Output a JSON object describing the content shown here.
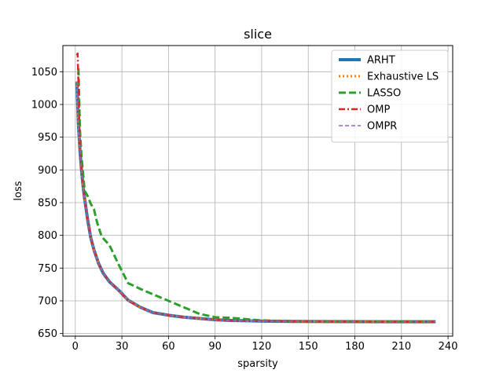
{
  "chart_data": {
    "type": "line",
    "title": "slice",
    "xlabel": "sparsity",
    "ylabel": "loss",
    "xlim": [
      -8,
      243
    ],
    "ylim": [
      646,
      1090
    ],
    "xticks": [
      0,
      30,
      60,
      90,
      120,
      150,
      180,
      210,
      240
    ],
    "yticks": [
      650,
      700,
      750,
      800,
      850,
      900,
      950,
      1000,
      1050
    ],
    "grid": true,
    "legend_position": "top-right",
    "series": [
      {
        "name": "ARHT",
        "color": "#1f77b4",
        "style": "solid",
        "x": [
          1,
          2,
          3,
          4,
          5,
          6,
          8,
          10,
          12,
          15,
          18,
          22,
          28,
          34,
          42,
          50,
          60,
          70,
          80,
          90,
          100,
          110,
          120,
          140,
          160,
          180,
          200,
          220,
          232
        ],
        "y": [
          1035,
          970,
          930,
          900,
          875,
          856,
          823,
          796,
          778,
          757,
          742,
          729,
          716,
          701,
          690,
          682,
          678,
          675,
          673,
          671,
          670,
          669.5,
          669,
          668.5,
          668.3,
          668.2,
          668.1,
          668,
          668
        ]
      },
      {
        "name": "Exhaustive LS",
        "color": "#ff7f0e",
        "style": "dotted",
        "x": [
          1,
          2,
          3,
          4,
          5,
          6,
          8,
          10,
          12,
          15,
          18,
          22,
          28,
          34,
          42,
          50,
          60,
          70,
          80,
          90,
          100,
          110,
          120,
          140,
          160,
          180,
          200,
          220,
          232
        ],
        "y": [
          1035,
          970,
          930,
          900,
          875,
          856,
          823,
          796,
          778,
          757,
          742,
          729,
          716,
          701,
          690,
          682,
          678,
          675,
          673,
          671,
          670,
          669.5,
          669,
          668.5,
          668.3,
          668.2,
          668.1,
          668,
          668
        ]
      },
      {
        "name": "LASSO",
        "color": "#2ca02c",
        "style": "dashed",
        "x": [
          2,
          3,
          4,
          5,
          6,
          8,
          10,
          12,
          14,
          17,
          22,
          28,
          34,
          42,
          50,
          60,
          70,
          80,
          90,
          100,
          110,
          120,
          140,
          160,
          180,
          200,
          220,
          232
        ],
        "y": [
          1055,
          960,
          920,
          895,
          868,
          860,
          848,
          840,
          820,
          798,
          785,
          755,
          727,
          718,
          710,
          700,
          690,
          680,
          675,
          674,
          672,
          670,
          669,
          668.5,
          668.3,
          668.2,
          668.1,
          668
        ]
      },
      {
        "name": "OMP",
        "color": "#d62728",
        "style": "dashdot",
        "x": [
          1,
          1.5,
          2,
          3,
          4,
          5,
          6,
          8,
          10,
          12,
          15,
          18,
          22,
          28,
          34,
          42,
          50,
          60,
          70,
          80,
          90,
          100,
          110,
          120,
          140,
          160,
          180,
          200,
          220,
          232
        ],
        "y": [
          1075,
          1078,
          1035,
          930,
          900,
          875,
          856,
          823,
          796,
          778,
          757,
          742,
          729,
          716,
          700,
          690,
          682,
          678,
          675,
          673,
          671,
          670,
          669.5,
          669,
          668.5,
          668.3,
          668.2,
          668.1,
          668,
          668
        ]
      },
      {
        "name": "OMPR",
        "color": "#9467bd",
        "style": "dashed-thin",
        "x": [
          1,
          2,
          3,
          4,
          5,
          6,
          8,
          10,
          12,
          15,
          18,
          22,
          28,
          34,
          42,
          50,
          60,
          70,
          80,
          90,
          100,
          110,
          120,
          140,
          160,
          180,
          200,
          220,
          232
        ],
        "y": [
          1035,
          970,
          930,
          900,
          875,
          856,
          823,
          796,
          778,
          757,
          742,
          729,
          716,
          701,
          690,
          682,
          678,
          675,
          673,
          671,
          670,
          669.5,
          669,
          668.5,
          668.3,
          668.2,
          668.1,
          668,
          668
        ]
      }
    ]
  }
}
